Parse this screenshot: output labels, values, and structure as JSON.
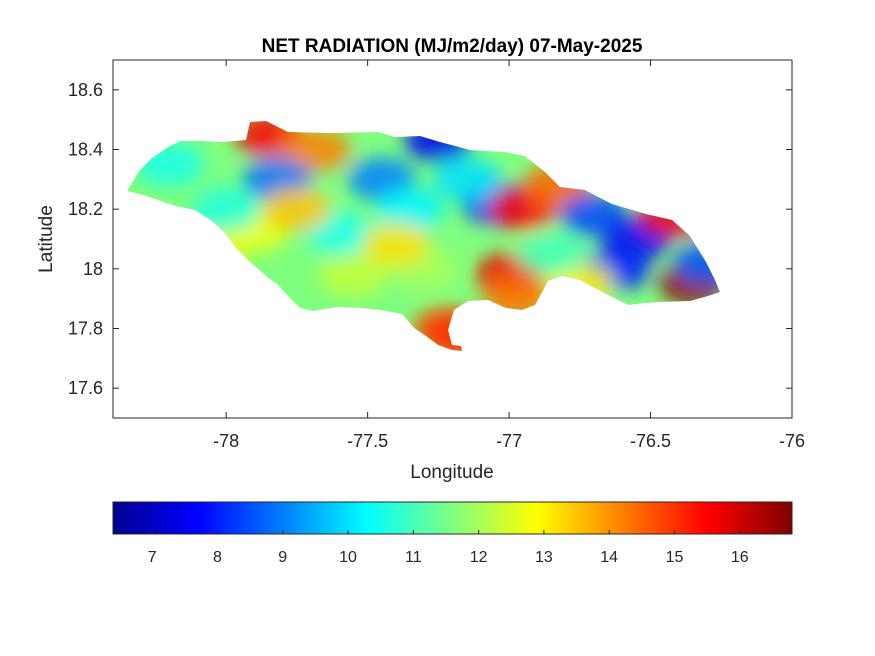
{
  "chart_data": {
    "type": "heatmap",
    "title": "NET RADIATION (MJ/m2/day) 07-May-2025",
    "xlabel": "Longitude",
    "ylabel": "Latitude",
    "xlim": [
      -78.4,
      -76
    ],
    "ylim": [
      17.5,
      18.7
    ],
    "x_ticks": [
      -78,
      -77.5,
      -77,
      -76.5,
      -76
    ],
    "x_tick_labels": [
      "-78",
      "-77.5",
      "-77",
      "-76.5",
      "-76"
    ],
    "y_ticks": [
      17.6,
      17.8,
      18,
      18.2,
      18.4,
      18.6
    ],
    "y_tick_labels": [
      "17.6",
      "17.8",
      "18",
      "18.2",
      "18.4",
      "18.6"
    ],
    "grid": false,
    "colormap": "jet",
    "colorbar": {
      "orientation": "horizontal",
      "location": "below",
      "clim": [
        6.4,
        16.8
      ],
      "ticks": [
        7,
        8,
        9,
        10,
        11,
        12,
        13,
        14,
        15,
        16
      ],
      "tick_labels": [
        "7",
        "8",
        "9",
        "10",
        "11",
        "12",
        "13",
        "14",
        "15",
        "16"
      ]
    },
    "regions": [
      {
        "lon": -77.85,
        "lat": 18.45,
        "value": 15.5
      },
      {
        "lon": -77.68,
        "lat": 18.4,
        "value": 14.2
      },
      {
        "lon": -77.25,
        "lat": 18.43,
        "value": 7.5
      },
      {
        "lon": -77.82,
        "lat": 18.3,
        "value": 8.8
      },
      {
        "lon": -77.45,
        "lat": 18.3,
        "value": 9.0
      },
      {
        "lon": -77.05,
        "lat": 18.22,
        "value": 8.3
      },
      {
        "lon": -76.95,
        "lat": 18.2,
        "value": 15.4
      },
      {
        "lon": -76.83,
        "lat": 18.28,
        "value": 14.5
      },
      {
        "lon": -76.7,
        "lat": 18.18,
        "value": 8.4
      },
      {
        "lon": -76.55,
        "lat": 18.1,
        "value": 7.6
      },
      {
        "lon": -76.62,
        "lat": 18.0,
        "value": 8.0
      },
      {
        "lon": -76.42,
        "lat": 18.18,
        "value": 15.6
      },
      {
        "lon": -76.35,
        "lat": 17.95,
        "value": 16.6
      },
      {
        "lon": -76.3,
        "lat": 18.02,
        "value": 8.6
      },
      {
        "lon": -78.05,
        "lat": 18.05,
        "value": 12.5
      },
      {
        "lon": -77.9,
        "lat": 18.13,
        "value": 12.8
      },
      {
        "lon": -77.55,
        "lat": 17.98,
        "value": 12.3
      },
      {
        "lon": -77.3,
        "lat": 18.0,
        "value": 12.0
      },
      {
        "lon": -77.22,
        "lat": 17.8,
        "value": 14.8
      },
      {
        "lon": -77.18,
        "lat": 17.77,
        "value": 15.0
      },
      {
        "lon": -77.0,
        "lat": 17.98,
        "value": 15.6
      },
      {
        "lon": -76.97,
        "lat": 17.9,
        "value": 14.3
      },
      {
        "lon": -76.75,
        "lat": 17.95,
        "value": 13.0
      },
      {
        "lon": -78.2,
        "lat": 18.35,
        "value": 10.5
      },
      {
        "lon": -78.0,
        "lat": 18.2,
        "value": 10.6
      },
      {
        "lon": -77.6,
        "lat": 18.12,
        "value": 10.5
      },
      {
        "lon": -77.35,
        "lat": 18.2,
        "value": 10.2
      },
      {
        "lon": -77.15,
        "lat": 18.3,
        "value": 10.0
      },
      {
        "lon": -76.85,
        "lat": 18.05,
        "value": 11.0
      },
      {
        "lon": -77.75,
        "lat": 18.2,
        "value": 13.5
      },
      {
        "lon": -77.4,
        "lat": 18.08,
        "value": 13.2
      }
    ]
  }
}
